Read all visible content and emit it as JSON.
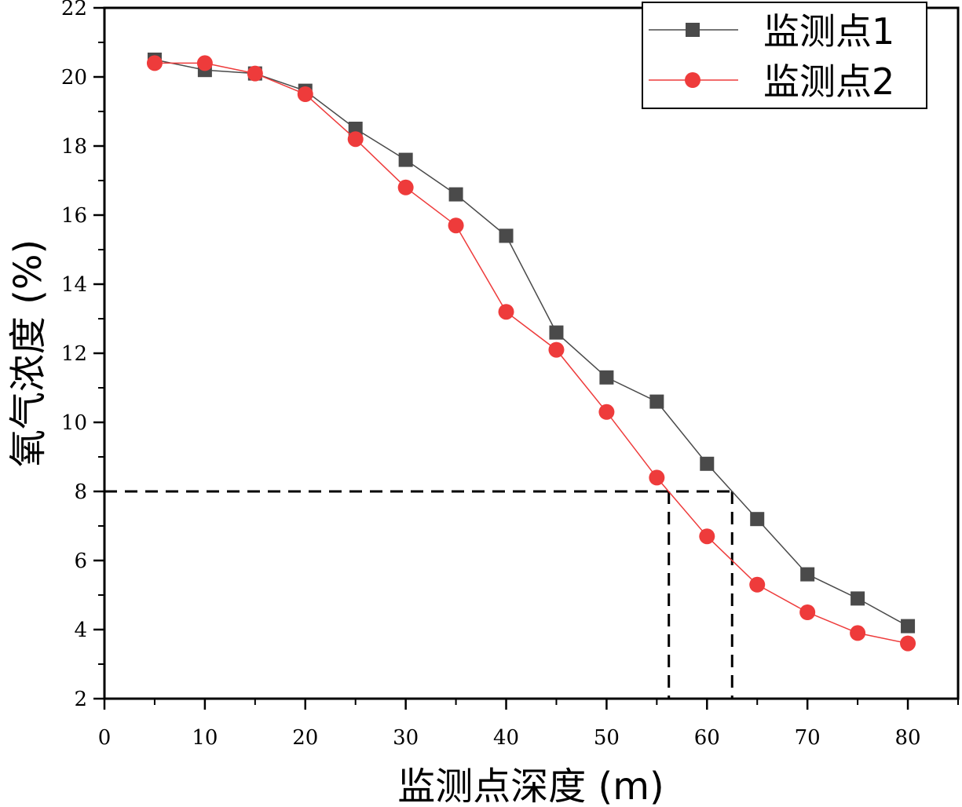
{
  "chart_data": {
    "type": "line",
    "title": "",
    "xlabel": "监测点深度 (m)",
    "ylabel": "氧气浓度 (%)",
    "xlim": [
      0,
      85
    ],
    "ylim": [
      2,
      22
    ],
    "x_ticks": [
      "0",
      "10",
      "20",
      "30",
      "40",
      "50",
      "60",
      "70",
      "80"
    ],
    "y_ticks": [
      "2",
      "4",
      "6",
      "8",
      "10",
      "12",
      "14",
      "16",
      "18",
      "20",
      "22"
    ],
    "x": [
      5,
      10,
      15,
      20,
      25,
      30,
      35,
      40,
      45,
      50,
      55,
      60,
      65,
      70,
      75,
      80
    ],
    "series": [
      {
        "name": "监测点1",
        "color": "#4a4a4a",
        "marker": "square",
        "values": [
          20.5,
          20.2,
          20.1,
          19.6,
          18.5,
          17.6,
          16.6,
          15.4,
          12.6,
          11.3,
          10.6,
          8.8,
          7.2,
          5.6,
          4.9,
          4.1
        ]
      },
      {
        "name": "监测点2",
        "color": "#ee3b3b",
        "marker": "circle",
        "values": [
          20.4,
          20.4,
          20.1,
          19.5,
          18.2,
          16.8,
          15.7,
          13.2,
          12.1,
          10.3,
          8.4,
          6.7,
          5.3,
          4.5,
          3.9,
          3.6
        ]
      }
    ],
    "annotations": {
      "reference_y": 8,
      "reference_x": [
        56.2,
        62.5
      ],
      "style": "dashed"
    },
    "legend_position": "top-right",
    "grid": false
  }
}
